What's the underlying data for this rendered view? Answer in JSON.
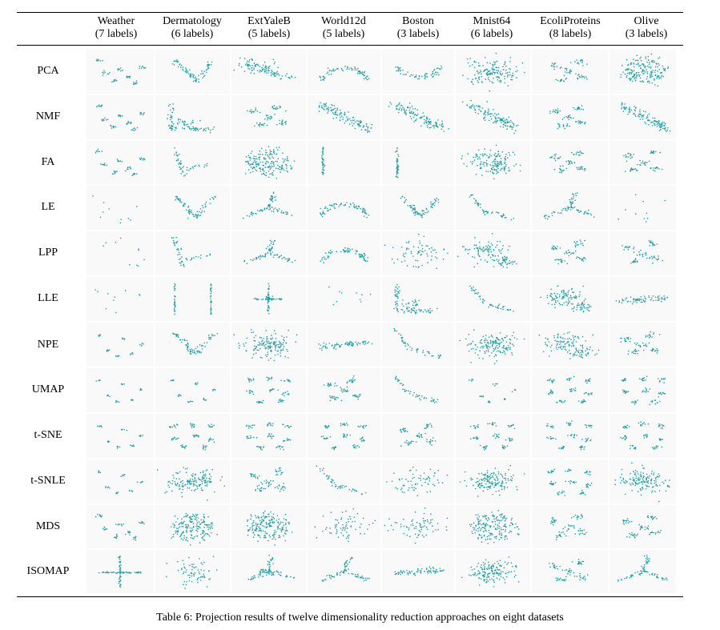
{
  "caption": "Table 6: Projection results of twelve dimensionality reduction approaches on eight datasets",
  "columns": [
    {
      "name": "Weather",
      "labels": "(7 labels)"
    },
    {
      "name": "Dermatology",
      "labels": "(6 labels)"
    },
    {
      "name": "ExtYaleB",
      "labels": "(5 labels)"
    },
    {
      "name": "World12d",
      "labels": "(5 labels)"
    },
    {
      "name": "Boston",
      "labels": "(3 labels)"
    },
    {
      "name": "Mnist64",
      "labels": "(6 labels)"
    },
    {
      "name": "EcoliProteins",
      "labels": "(8 labels)"
    },
    {
      "name": "Olive",
      "labels": "(3 labels)"
    }
  ],
  "rows": [
    "PCA",
    "NMF",
    "FA",
    "LE",
    "LPP",
    "LLE",
    "NPE",
    "UMAP",
    "t-SNE",
    "t-SNLE",
    "MDS",
    "ISOMAP"
  ],
  "colors": {
    "point": "#1aa0a0",
    "cell_background": "#f9f9f9",
    "rule": "#000000"
  },
  "chart_data": {
    "type": "scatter",
    "description_grid": "12 methods x 8 datasets grid of 2-D projection scatter plots; axes, ticks and legends are not printed",
    "columns": [
      "Weather",
      "Dermatology",
      "ExtYaleB",
      "World12d",
      "Boston",
      "Mnist64",
      "EcoliProteins",
      "Olive"
    ],
    "rows": [
      "PCA",
      "NMF",
      "FA",
      "LE",
      "LPP",
      "LLE",
      "NPE",
      "UMAP",
      "t-SNE",
      "t-SNLE",
      "MDS",
      "ISOMAP"
    ],
    "point_color": "#1aa0a0",
    "grid": false,
    "legend": "none"
  }
}
